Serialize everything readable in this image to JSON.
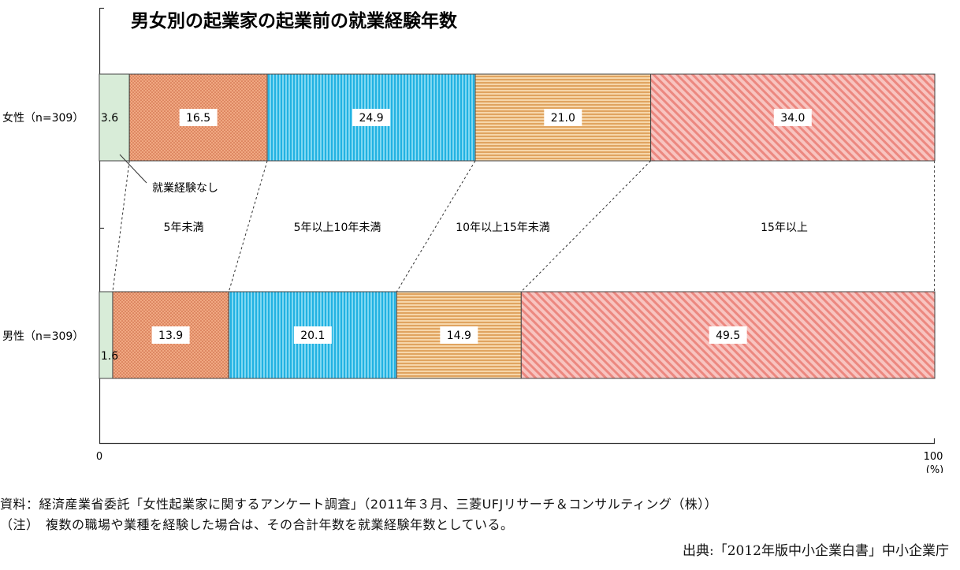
{
  "chart_data": {
    "type": "bar",
    "orientation": "horizontal",
    "stacked": true,
    "title": "男女別の起業家の起業前の就業経験年数",
    "categories": [
      "女性（n=309）",
      "男性（n=309）"
    ],
    "series": [
      {
        "name": "就業経験なし",
        "values": [
          3.6,
          1.6
        ],
        "color": "#d8ecd8"
      },
      {
        "name": "5年未満",
        "values": [
          16.5,
          13.9
        ],
        "color": "#f0a882"
      },
      {
        "name": "5年以上10年未満",
        "values": [
          24.9,
          20.1
        ],
        "color": "#4fc8ec"
      },
      {
        "name": "10年以上15年未満",
        "values": [
          21.0,
          14.9
        ],
        "color": "#f0c690"
      },
      {
        "name": "15年以上",
        "values": [
          34.0,
          49.5
        ],
        "color": "#f4aaa4"
      }
    ],
    "value_labels": [
      [
        "3.6",
        "16.5",
        "24.9",
        "21.0",
        "34.0"
      ],
      [
        "1.6",
        "13.9",
        "20.1",
        "14.9",
        "49.5"
      ]
    ],
    "xlim": [
      0,
      100
    ],
    "x_ticks": [
      "0",
      "100"
    ],
    "x_unit": "(%)",
    "grid": false,
    "legend": "labels-between-bars"
  },
  "notes": {
    "source_line": "資料：経済産業省委託「女性起業家に関するアンケート調査」（2011年３月、三菱UFJリサーチ＆コンサルティング（株））",
    "note_line": "（注）　複数の職場や業種を経験した場合は、その合計年数を就業経験年数としている。",
    "citation": "出典:「2012年版中小企業白書」中小企業庁"
  }
}
